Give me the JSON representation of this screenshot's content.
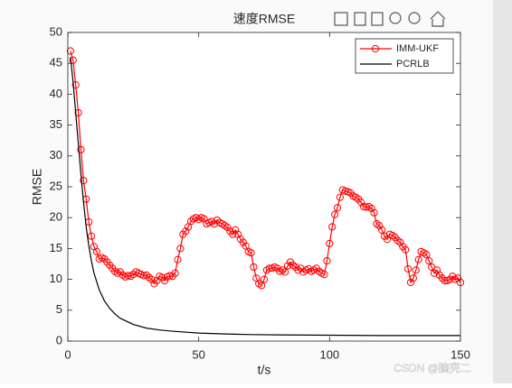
{
  "chart_data": {
    "type": "line",
    "title": "速度RMSE",
    "xlabel": "t/s",
    "ylabel": "RMSE",
    "xlim": [
      0,
      150
    ],
    "ylim": [
      0,
      50
    ],
    "xticks": [
      0,
      50,
      100,
      150
    ],
    "yticks": [
      0,
      5,
      10,
      15,
      20,
      25,
      30,
      35,
      40,
      45,
      50
    ],
    "legend": "upper right",
    "grid": false,
    "series": [
      {
        "name": "IMM-UKF",
        "color": "#ff0000",
        "marker": "circle",
        "x": [
          1,
          2,
          3,
          4,
          5,
          6,
          7,
          8,
          9,
          10,
          11,
          12,
          13,
          14,
          15,
          16,
          17,
          18,
          19,
          20,
          21,
          22,
          23,
          24,
          25,
          26,
          27,
          28,
          29,
          30,
          31,
          32,
          33,
          34,
          35,
          36,
          37,
          38,
          39,
          40,
          41,
          42,
          43,
          44,
          45,
          46,
          47,
          48,
          49,
          50,
          51,
          52,
          53,
          54,
          55,
          56,
          57,
          58,
          59,
          60,
          61,
          62,
          63,
          64,
          65,
          66,
          67,
          68,
          69,
          70,
          71,
          72,
          73,
          74,
          75,
          76,
          77,
          78,
          79,
          80,
          81,
          82,
          83,
          84,
          85,
          86,
          87,
          88,
          89,
          90,
          91,
          92,
          93,
          94,
          95,
          96,
          97,
          98,
          99,
          100,
          101,
          102,
          103,
          104,
          105,
          106,
          107,
          108,
          109,
          110,
          111,
          112,
          113,
          114,
          115,
          116,
          117,
          118,
          119,
          120,
          121,
          122,
          123,
          124,
          125,
          126,
          127,
          128,
          129,
          130,
          131,
          132,
          133,
          134,
          135,
          136,
          137,
          138,
          139,
          140,
          141,
          142,
          143,
          144,
          145,
          146,
          147,
          148,
          149,
          150
        ],
        "values": [
          47,
          45.5,
          41.5,
          37,
          31,
          26,
          23,
          19.3,
          17,
          15.3,
          14.5,
          13.3,
          13.5,
          13.3,
          12.8,
          12.3,
          11.8,
          11.3,
          11,
          11.2,
          10.7,
          10.4,
          10.6,
          10.5,
          10.8,
          11.2,
          11,
          10.8,
          10.6,
          10.7,
          10.3,
          10,
          9.3,
          9.8,
          10.5,
          10.3,
          9.8,
          10.4,
          10.6,
          10.5,
          11,
          13.2,
          15,
          17.3,
          17.8,
          18.5,
          19.4,
          19.8,
          20,
          19.7,
          20,
          19.8,
          19,
          19.2,
          19.4,
          19,
          19.6,
          19.2,
          19,
          18.7,
          18.4,
          17.8,
          17.3,
          18,
          17.3,
          16.5,
          16,
          15.4,
          14.5,
          14.3,
          12,
          10.2,
          9.3,
          9,
          10,
          11.5,
          11.8,
          11.8,
          12,
          11.8,
          11.3,
          11.5,
          11.2,
          12.2,
          12.8,
          12.3,
          12,
          11.5,
          11.8,
          11.2,
          11.5,
          11.7,
          11.3,
          11.5,
          11.8,
          11.3,
          11,
          10.8,
          13,
          15.8,
          18.5,
          20.5,
          21.6,
          23.3,
          24.5,
          24.3,
          24.2,
          24,
          23.5,
          23.3,
          23,
          22.5,
          21.8,
          21.7,
          21.8,
          21.5,
          20.8,
          19,
          18.7,
          18,
          17,
          16.5,
          17.3,
          17.1,
          16.8,
          16.3,
          16,
          15.3,
          14.8,
          11.7,
          9.5,
          10.2,
          11.5,
          13.2,
          14.5,
          14.3,
          14,
          13,
          12,
          11,
          11.5,
          10.7,
          10.2,
          9.8,
          9.8,
          10,
          10.5,
          10,
          10.2,
          9.5
        ]
      },
      {
        "name": "PCRLB",
        "color": "#000000",
        "marker": "none",
        "x": [
          1,
          2,
          3,
          4,
          5,
          6,
          7,
          8,
          9,
          10,
          12,
          14,
          16,
          18,
          20,
          25,
          30,
          35,
          40,
          50,
          60,
          70,
          80,
          100,
          120,
          150
        ],
        "values": [
          46,
          42,
          37,
          32,
          27,
          22.5,
          18.5,
          15.5,
          13,
          11,
          8.3,
          6.5,
          5.3,
          4.4,
          3.7,
          2.7,
          2.1,
          1.8,
          1.6,
          1.3,
          1.15,
          1.05,
          1,
          0.95,
          0.9,
          0.9
        ]
      }
    ]
  },
  "watermark": "CSDN @脑壳二"
}
